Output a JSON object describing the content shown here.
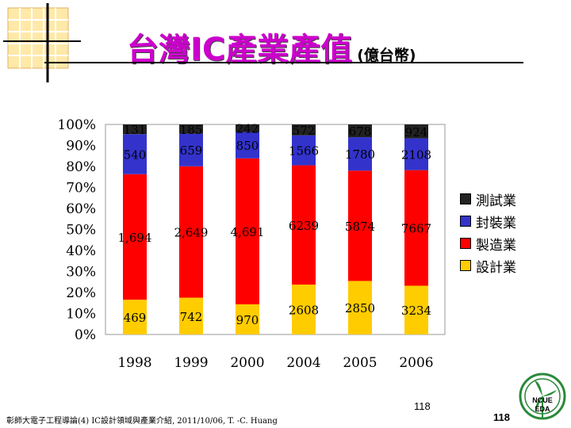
{
  "header": {
    "title": "台灣IC產業產值",
    "subtitle": "(億台幣)"
  },
  "chart_data": {
    "type": "bar",
    "stacked": "percent",
    "categories": [
      "1998",
      "1999",
      "2000",
      "2004",
      "2005",
      "2006"
    ],
    "y_ticks": [
      "0%",
      "10%",
      "20%",
      "30%",
      "40%",
      "50%",
      "60%",
      "70%",
      "80%",
      "90%",
      "100%"
    ],
    "ylim": [
      0,
      100
    ],
    "legend_placement": "right",
    "series": [
      {
        "name": "設計業",
        "color": "#ffcc00",
        "values": [
          469,
          742,
          970,
          2608,
          2850,
          3234
        ],
        "labels": [
          "469",
          "742",
          "970",
          "2608",
          "2850",
          "3234"
        ]
      },
      {
        "name": "製造業",
        "color": "#ff0000",
        "values": [
          1694,
          2649,
          4691,
          6239,
          5874,
          7667
        ],
        "labels": [
          "1,694",
          "2,649",
          "4,691",
          "6239",
          "5874",
          "7667"
        ]
      },
      {
        "name": "封裝業",
        "color": "#3333cc",
        "values": [
          540,
          659,
          850,
          1566,
          1780,
          2108
        ],
        "labels": [
          "540",
          "659",
          "850",
          "1566",
          "1780",
          "2108"
        ]
      },
      {
        "name": "測試業",
        "color": "#222222",
        "values": [
          131,
          185,
          242,
          572,
          678,
          924
        ],
        "labels": [
          "131",
          "185",
          "242",
          "572",
          "678",
          "924"
        ]
      }
    ]
  },
  "legend": {
    "items": [
      {
        "label": "測試業",
        "color": "#222222"
      },
      {
        "label": "封裝業",
        "color": "#3333cc"
      },
      {
        "label": "製造業",
        "color": "#ff0000"
      },
      {
        "label": "設計業",
        "color": "#ffcc00"
      }
    ]
  },
  "footer": {
    "text": "彰師大電子工程導論(4) IC設計領域與產業介紹, 2011/10/06, T. -C. Huang",
    "page_number": "118",
    "page_number_2": "118",
    "logo_text_1": "NCUE",
    "logo_text_2": "EDA"
  },
  "colors": {
    "title": "#cc00cc",
    "logo_grid": "#ffcc66"
  }
}
